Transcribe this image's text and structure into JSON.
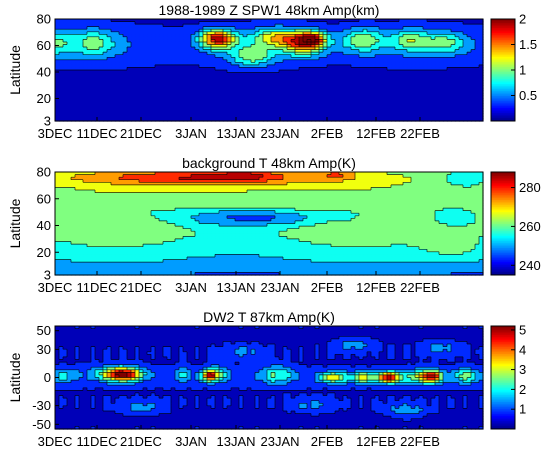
{
  "chart_data": [
    {
      "type": "heatmap",
      "title": "1988-1989 Z SPW1 48km Amp(km)",
      "ylabel": "Latitude",
      "x_tick_labels": [
        "3DEC",
        "11DEC",
        "21DEC",
        "3JAN",
        "13JAN",
        "23JAN",
        "2FEB",
        "12FEB",
        "22FEB"
      ],
      "y_ticks": [
        3,
        20,
        40,
        60,
        80
      ],
      "ylim": [
        3,
        80
      ],
      "colorbar": {
        "ticks": [
          0.5,
          1,
          1.5,
          2
        ],
        "range": [
          0,
          2
        ]
      },
      "blobs": [
        {
          "x": 0,
          "y": 62,
          "v": 0.55,
          "sx": 4,
          "sy": 10
        },
        {
          "x": 9,
          "y": 62,
          "v": 0.55,
          "sx": 5,
          "sy": 10
        },
        {
          "x": 38,
          "y": 65,
          "v": 1.55,
          "sx": 4,
          "sy": 7
        },
        {
          "x": 46,
          "y": 52,
          "v": 0.7,
          "sx": 5,
          "sy": 8
        },
        {
          "x": 51,
          "y": 66,
          "v": 0.85,
          "sx": 5,
          "sy": 7
        },
        {
          "x": 58,
          "y": 62,
          "v": 1.25,
          "sx": 5,
          "sy": 9
        },
        {
          "x": 60,
          "y": 65,
          "v": 1.05,
          "sx": 3,
          "sy": 5
        },
        {
          "x": 72,
          "y": 64,
          "v": 0.75,
          "sx": 5,
          "sy": 9
        },
        {
          "x": 83,
          "y": 64,
          "v": 0.65,
          "sx": 4,
          "sy": 8
        },
        {
          "x": 91,
          "y": 62,
          "v": 0.6,
          "sx": 5,
          "sy": 8
        }
      ]
    },
    {
      "type": "heatmap",
      "title": "background T 48km Amp(K)",
      "ylabel": "Latitude",
      "x_tick_labels": [
        "3DEC",
        "11DEC",
        "21DEC",
        "3JAN",
        "13JAN",
        "23JAN",
        "2FEB",
        "12FEB",
        "22FEB"
      ],
      "y_ticks": [
        3,
        20,
        40,
        60,
        80
      ],
      "ylim": [
        3,
        80
      ],
      "colorbar": {
        "ticks": [
          240,
          260,
          280
        ],
        "range": [
          235,
          288
        ]
      },
      "blobs": [
        {
          "x": 34,
          "y": 76,
          "v": 20,
          "sx": 30,
          "sy": 6
        },
        {
          "x": 44,
          "y": 78,
          "v": 8,
          "sx": 6,
          "sy": 4
        },
        {
          "x": 66,
          "y": 78,
          "v": 10,
          "sx": 4,
          "sy": 4
        },
        {
          "x": 40,
          "y": 46,
          "v": -13,
          "sx": 13,
          "sy": 7
        },
        {
          "x": 54,
          "y": 46,
          "v": -10,
          "sx": 10,
          "sy": 6
        },
        {
          "x": 68,
          "y": 48,
          "v": -6,
          "sx": 6,
          "sy": 6
        },
        {
          "x": 22,
          "y": 52,
          "v": -4,
          "sx": 8,
          "sy": 8
        },
        {
          "x": 1,
          "y": 60,
          "v": -4,
          "sx": 5,
          "sy": 6
        },
        {
          "x": 96,
          "y": 75,
          "v": -10,
          "sx": 5,
          "sy": 7
        },
        {
          "x": 93,
          "y": 48,
          "v": -7,
          "sx": 6,
          "sy": 7
        },
        {
          "x": 93,
          "y": 22,
          "v": 6,
          "sx": 8,
          "sy": 10
        }
      ]
    },
    {
      "type": "heatmap",
      "title": "DW2 T 87km Amp(K)",
      "ylabel": "Latitude",
      "x_tick_labels": [
        "3DEC",
        "11DEC",
        "21DEC",
        "3JAN",
        "13JAN",
        "23JAN",
        "2FEB",
        "12FEB",
        "22FEB"
      ],
      "y_ticks": [
        50,
        30,
        0,
        -30,
        -50
      ],
      "ylim": [
        -55,
        55
      ],
      "colorbar": {
        "ticks": [
          1,
          2,
          3,
          4,
          5
        ],
        "range": [
          0,
          5.2
        ]
      },
      "blobs": [
        {
          "x": 16,
          "y": 3,
          "v": 3.6,
          "sx": 4,
          "sy": 7
        },
        {
          "x": 14,
          "y": 5,
          "v": 1.5,
          "sx": 6,
          "sy": 8
        },
        {
          "x": 36,
          "y": 2,
          "v": 3.5,
          "sx": 1.8,
          "sy": 6
        },
        {
          "x": 38,
          "y": 4,
          "v": 1.6,
          "sx": 2.5,
          "sy": 8
        },
        {
          "x": 30,
          "y": 3,
          "v": 1.0,
          "sx": 2,
          "sy": 9
        },
        {
          "x": 52,
          "y": 3,
          "v": 1.6,
          "sx": 4,
          "sy": 10
        },
        {
          "x": 65,
          "y": 0,
          "v": 2.6,
          "sx": 3,
          "sy": 6
        },
        {
          "x": 72,
          "y": 0,
          "v": 2.6,
          "sx": 3,
          "sy": 6
        },
        {
          "x": 78,
          "y": 0,
          "v": 4.3,
          "sx": 2.5,
          "sy": 6
        },
        {
          "x": 88,
          "y": 1,
          "v": 4.0,
          "sx": 2.5,
          "sy": 7
        },
        {
          "x": 84,
          "y": 1,
          "v": 1.6,
          "sx": 3,
          "sy": 8
        },
        {
          "x": 96,
          "y": 2,
          "v": 1.8,
          "sx": 3,
          "sy": 8
        },
        {
          "x": 2,
          "y": 2,
          "v": 1.1,
          "sx": 3,
          "sy": 8
        },
        {
          "x": 44,
          "y": 28,
          "v": 0.8,
          "sx": 5,
          "sy": 8
        },
        {
          "x": 70,
          "y": 35,
          "v": 0.9,
          "sx": 5,
          "sy": 8
        },
        {
          "x": 90,
          "y": 32,
          "v": 0.8,
          "sx": 5,
          "sy": 8
        },
        {
          "x": 20,
          "y": -32,
          "v": 0.9,
          "sx": 5,
          "sy": 8
        },
        {
          "x": 60,
          "y": -30,
          "v": 0.8,
          "sx": 5,
          "sy": 8
        },
        {
          "x": 82,
          "y": -35,
          "v": 1.0,
          "sx": 5,
          "sy": 8
        }
      ]
    }
  ]
}
